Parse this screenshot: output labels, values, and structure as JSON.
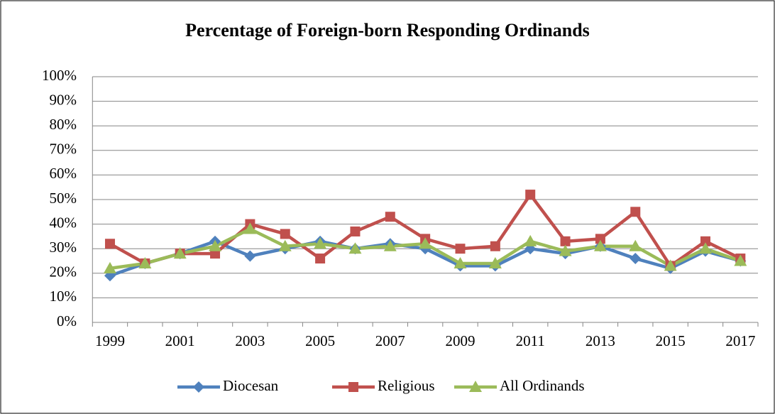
{
  "chart_data": {
    "type": "line",
    "title": "Percentage of Foreign-born Responding Ordinands",
    "categories": [
      "1999",
      null,
      "2001",
      null,
      "2003",
      null,
      "2005",
      null,
      "2007",
      null,
      "2009",
      null,
      "2011",
      null,
      "2013",
      null,
      "2015",
      null,
      "2017"
    ],
    "series": [
      {
        "name": "Diocesan",
        "color": "#4f81bd",
        "marker": "diamond",
        "values": [
          19,
          24,
          28,
          33,
          27,
          30,
          33,
          30,
          32,
          30,
          23,
          23,
          30,
          28,
          31,
          26,
          22,
          29,
          25
        ]
      },
      {
        "name": "Religious",
        "color": "#c0504d",
        "marker": "square",
        "values": [
          32,
          24,
          28,
          28,
          40,
          36,
          26,
          37,
          43,
          34,
          30,
          31,
          52,
          33,
          34,
          45,
          23,
          33,
          26
        ]
      },
      {
        "name": "All Ordinands",
        "color": "#9bbb59",
        "marker": "triangle",
        "values": [
          22,
          24,
          28,
          31,
          38,
          31,
          32,
          30,
          31,
          32,
          24,
          24,
          33,
          29,
          31,
          31,
          23,
          30,
          25
        ]
      }
    ],
    "ylim": [
      0,
      100
    ],
    "yticks": [
      {
        "value": 0,
        "label": "0%"
      },
      {
        "value": 10,
        "label": "10%"
      },
      {
        "value": 20,
        "label": "20%"
      },
      {
        "value": 30,
        "label": "30%"
      },
      {
        "value": 40,
        "label": "40%"
      },
      {
        "value": 50,
        "label": "50%"
      },
      {
        "value": 60,
        "label": "60%"
      },
      {
        "value": 70,
        "label": "70%"
      },
      {
        "value": 80,
        "label": "80%"
      },
      {
        "value": 90,
        "label": "90%"
      },
      {
        "value": 100,
        "label": "100%"
      }
    ],
    "grid": true,
    "legend": "bottom"
  }
}
